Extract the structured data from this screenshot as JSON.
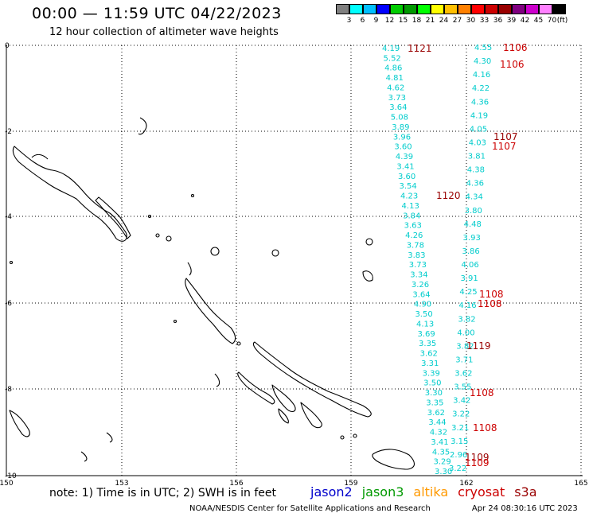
{
  "header": {
    "title": "00:00 — 11:59 UTC 04/22/2023",
    "subtitle": "12 hour collection of altimeter wave heights"
  },
  "legend": {
    "colors": [
      "#808080",
      "#00ffff",
      "#00bfff",
      "#0000ff",
      "#00cc00",
      "#009900",
      "#00ff00",
      "#ffff00",
      "#ffbf00",
      "#ff8000",
      "#ff0000",
      "#cc0000",
      "#990000",
      "#800080",
      "#cc00cc",
      "#ff80ff",
      "#000000"
    ],
    "labels": [
      "3",
      "6",
      "9",
      "12",
      "15",
      "18",
      "21",
      "24",
      "27",
      "30",
      "33",
      "36",
      "39",
      "42",
      "45",
      "70",
      "(ft)"
    ]
  },
  "axes": {
    "x_ticks": [
      "150",
      "153",
      "156",
      "159",
      "162",
      "165"
    ],
    "y_ticks": [
      "0",
      "-2",
      "-4",
      "-6",
      "-8",
      "-10"
    ]
  },
  "wave_heights": {
    "track_west": [
      "4.19",
      "5.52",
      "4.86",
      "4.81",
      "4.62",
      "3.73",
      "3.64",
      "5.08",
      "3.89",
      "3.96",
      "3.60",
      "4.39",
      "3.41",
      "3.60",
      "3.54",
      "4.23",
      "4.13",
      "3.84",
      "3.63",
      "4.26",
      "3.78",
      "3.83",
      "3.73",
      "3.34",
      "3.26",
      "3.64",
      "4.90",
      "3.50",
      "4.13",
      "3.69",
      "3.35",
      "3.62",
      "3.31",
      "3.39",
      "3.50",
      "3.30",
      "3.35",
      "3.62",
      "3.44",
      "4.32",
      "3.41",
      "4.35",
      "3.29",
      "3.30"
    ],
    "track_east": [
      "4.55",
      "4.30",
      "4.16",
      "4.22",
      "4.36",
      "4.19",
      "4.05",
      "4.03",
      "3.81",
      "4.38",
      "4.36",
      "4.34",
      "3.80",
      "4.48",
      "3.93",
      "3.86",
      "4.06",
      "3.91",
      "4.25",
      "4.16",
      "3.82",
      "4.00",
      "3.82",
      "3.71",
      "3.62",
      "3.55",
      "3.42",
      "3.22",
      "3.21",
      "3.15",
      "2.96",
      "3.22"
    ]
  },
  "track_labels": [
    "1121",
    "1106",
    "1106",
    "1107",
    "1107",
    "1120",
    "1108",
    "1108",
    "1119",
    "1108",
    "1108",
    "1109",
    "1109"
  ],
  "note": "note:  1) Time is in UTC;  2) SWH is in feet",
  "satellites": [
    {
      "name": "jason2",
      "color": "#0000cc"
    },
    {
      "name": "jason3",
      "color": "#009900"
    },
    {
      "name": "altika",
      "color": "#ff9900"
    },
    {
      "name": "cryosat",
      "color": "#cc0000"
    },
    {
      "name": "s3a",
      "color": "#990000"
    }
  ],
  "footer": {
    "agency": "NOAA/NESDIS Center for Satellite Applications and Research",
    "timestamp": "Apr 24 08:30:16 UTC 2023"
  }
}
